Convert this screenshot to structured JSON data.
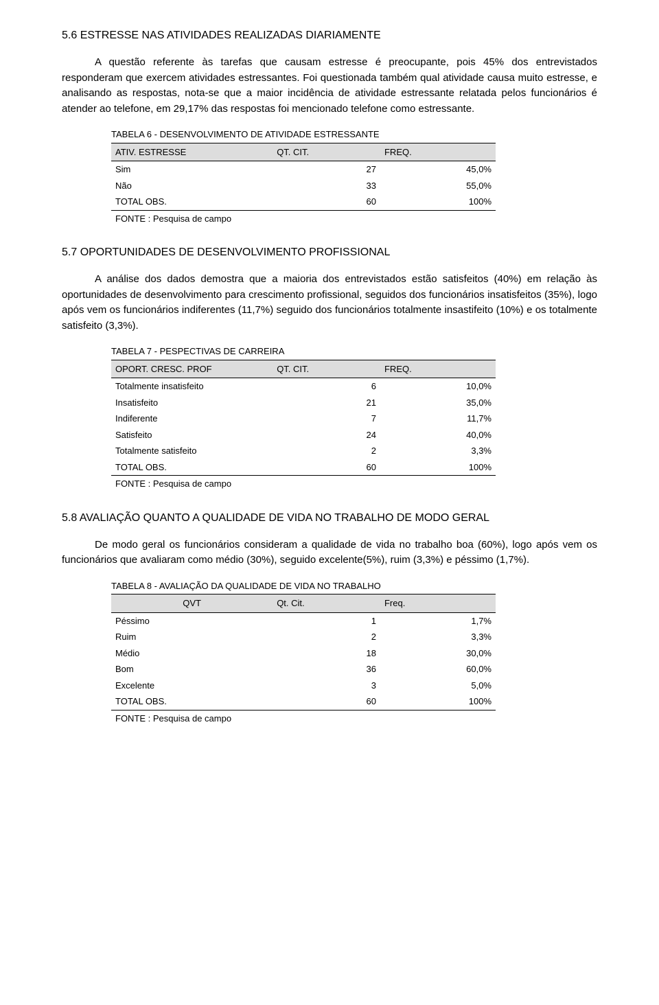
{
  "section1": {
    "heading": "5.6   ESTRESSE NAS ATIVIDADES REALIZADAS DIARIAMENTE",
    "paragraph": "A questão referente às tarefas que causam estresse é preocupante, pois 45% dos entrevistados responderam que exercem atividades estressantes. Foi questionada também qual atividade causa muito estresse, e analisando as respostas, nota-se que a maior incidência de atividade estressante relatada pelos funcionários é atender ao telefone, em 29,17% das respostas foi mencionado telefone como estressante."
  },
  "table6": {
    "title": "TABELA 6 - DESENVOLVIMENTO DE ATIVIDADE ESTRESSANTE",
    "header": {
      "label": "ATIV. ESTRESSE",
      "qt": "QT. CIT.",
      "freq": "FREQ."
    },
    "rows": [
      {
        "label": "Sim",
        "qt": "27",
        "freq": "45,0%"
      },
      {
        "label": "Não",
        "qt": "33",
        "freq": "55,0%"
      }
    ],
    "total": {
      "label": "TOTAL OBS.",
      "qt": "60",
      "freq": "100%"
    },
    "source": "FONTE : Pesquisa de campo"
  },
  "section2": {
    "heading": "5.7  OPORTUNIDADES DE DESENVOLVIMENTO PROFISSIONAL",
    "paragraph": "A análise dos dados demostra que a maioria dos entrevistados estão satisfeitos (40%) em relação às oportunidades de desenvolvimento para crescimento profissional, seguidos dos funcionários insatisfeitos (35%), logo após vem os funcionários indiferentes (11,7%) seguido dos funcionários totalmente insastifeito (10%) e os totalmente satisfeito (3,3%)."
  },
  "table7": {
    "title": "TABELA 7 - PESPECTIVAS DE CARREIRA",
    "header": {
      "label": "OPORT. CRESC. PROF",
      "qt": "QT. CIT.",
      "freq": "FREQ."
    },
    "rows": [
      {
        "label": "Totalmente insatisfeito",
        "qt": "6",
        "freq": "10,0%"
      },
      {
        "label": "Insatisfeito",
        "qt": "21",
        "freq": "35,0%"
      },
      {
        "label": "Indiferente",
        "qt": "7",
        "freq": "11,7%"
      },
      {
        "label": "Satisfeito",
        "qt": "24",
        "freq": "40,0%"
      },
      {
        "label": "Totalmente satisfeito",
        "qt": "2",
        "freq": "3,3%"
      }
    ],
    "total": {
      "label": "TOTAL OBS.",
      "qt": "60",
      "freq": "100%"
    },
    "source": "FONTE : Pesquisa de campo"
  },
  "section3": {
    "heading": "5.8  AVALIAÇÃO QUANTO A QUALIDADE DE VIDA NO TRABALHO DE MODO GERAL",
    "paragraph": "De modo geral os funcionários consideram a qualidade de vida no trabalho boa (60%), logo após vem os funcionários que avaliaram como médio (30%), seguido excelente(5%), ruim (3,3%) e péssimo (1,7%)."
  },
  "table8": {
    "title": "TABELA 8 - AVALIAÇÃO DA QUALIDADE DE VIDA NO TRABALHO",
    "header": {
      "label": "QVT",
      "qt": "Qt. Cit.",
      "freq": "Freq."
    },
    "rows": [
      {
        "label": "Péssimo",
        "qt": "1",
        "freq": "1,7%"
      },
      {
        "label": "Ruim",
        "qt": "2",
        "freq": "3,3%"
      },
      {
        "label": "Médio",
        "qt": "18",
        "freq": "30,0%"
      },
      {
        "label": "Bom",
        "qt": "36",
        "freq": "60,0%"
      },
      {
        "label": "Excelente",
        "qt": "3",
        "freq": "5,0%"
      }
    ],
    "total": {
      "label": "TOTAL OBS.",
      "qt": "60",
      "freq": "100%"
    },
    "source": "FONTE : Pesquisa de campo"
  }
}
